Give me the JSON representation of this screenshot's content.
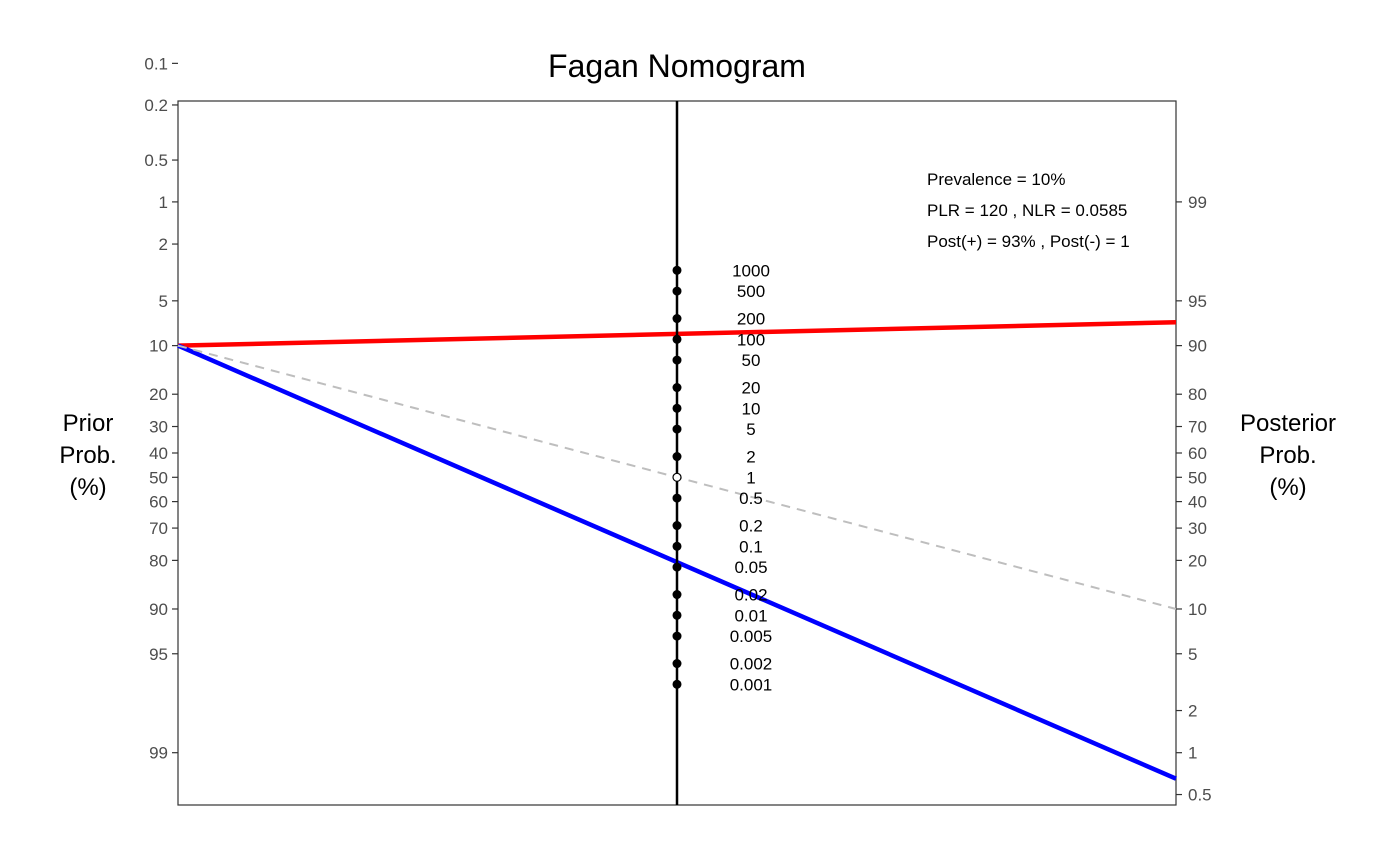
{
  "chart_data": {
    "type": "line",
    "title": "Fagan Nomogram",
    "left_axis": {
      "title_lines": [
        "Prior",
        "Prob.",
        "(%)"
      ],
      "ticks": [
        "0.1",
        "0.2",
        "0.5",
        "1",
        "2",
        "5",
        "10",
        "20",
        "30",
        "40",
        "50",
        "60",
        "70",
        "80",
        "90",
        "95",
        "99"
      ]
    },
    "right_axis": {
      "title_lines": [
        "Posterior",
        "Prob.",
        "(%)"
      ],
      "ticks": [
        "99",
        "95",
        "90",
        "80",
        "70",
        "60",
        "50",
        "40",
        "30",
        "20",
        "10",
        "5",
        "2",
        "1",
        "0.5"
      ]
    },
    "likelihood_ratio_scale": [
      "1000",
      "500",
      "200",
      "100",
      "50",
      "20",
      "10",
      "5",
      "2",
      "1",
      "0.5",
      "0.2",
      "0.1",
      "0.05",
      "0.02",
      "0.01",
      "0.005",
      "0.002",
      "0.001"
    ],
    "annotations": [
      "Prevalence = 10%",
      "PLR = 120 , NLR = 0.0585",
      "Post(+) = 93% , Post(-) = 1"
    ],
    "prevalence": 10,
    "plr": 120,
    "nlr": 0.0585,
    "series": [
      {
        "color": "#ff0000",
        "prior": 10,
        "lr": 120,
        "posterior": 93,
        "style": "solid"
      },
      {
        "color": "#0000ff",
        "prior": 10,
        "lr": 0.0585,
        "posterior": 0.65,
        "style": "solid"
      },
      {
        "color": "#bebebe",
        "prior": 10,
        "lr": 1,
        "posterior": 10,
        "style": "dashed"
      }
    ],
    "grid": false
  }
}
